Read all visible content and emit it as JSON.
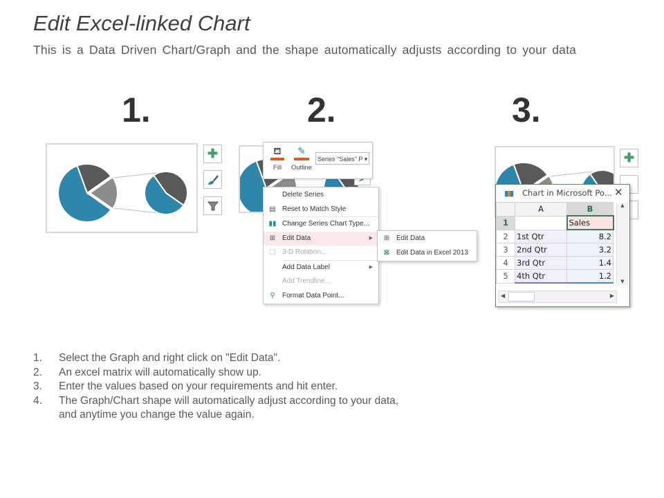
{
  "header": {
    "title": "Edit Excel-linked Chart",
    "subtitle": "This is a Data Driven Chart/Graph and the shape automatically adjusts according to your data"
  },
  "step_numbers": [
    "1.",
    "2.",
    "3."
  ],
  "colors": {
    "blue": "#2e86ab",
    "dark_gray": "#595959",
    "light_gray": "#8c8c8c",
    "accent_green": "#4a9e6b",
    "menu_highlight": "#fbe9e7",
    "fill_orange": "#d3601f"
  },
  "panel1": {
    "icons": [
      "plus-icon",
      "brush-icon",
      "filter-icon"
    ]
  },
  "panel2": {
    "mini_toolbar": {
      "fill_label": "Fill",
      "outline_label": "Outline",
      "series_select": "Series \"Sales\" P"
    },
    "context_menu": [
      {
        "label": "Delete Series",
        "icon": "",
        "disabled": false
      },
      {
        "label": "Reset to Match Style",
        "icon": "reset-style-icon",
        "disabled": false
      },
      {
        "label": "Change Series Chart Type...",
        "icon": "chart-type-icon",
        "disabled": false
      },
      {
        "label": "Edit Data",
        "icon": "edit-data-icon",
        "disabled": false,
        "submenu": true,
        "highlighted": true
      },
      {
        "label": "3-D Rotation...",
        "icon": "rotation-icon",
        "disabled": true
      },
      {
        "label": "Add Data Label",
        "icon": "",
        "disabled": false,
        "submenu": true
      },
      {
        "label": "Add Trendline...",
        "icon": "",
        "disabled": true
      },
      {
        "label": "Format Data Point...",
        "icon": "format-icon",
        "disabled": false
      }
    ],
    "submenu": [
      {
        "label": "Edit Data",
        "icon": "edit-data-icon"
      },
      {
        "label": "Edit Data in Excel 2013",
        "icon": "excel-icon"
      }
    ]
  },
  "panel3": {
    "window_title": "Chart in Microsoft Po...",
    "columns": [
      "A",
      "B"
    ],
    "rows": [
      {
        "num": "1",
        "a": "",
        "b": "Sales"
      },
      {
        "num": "2",
        "a": "1st Qtr",
        "b": "8.2"
      },
      {
        "num": "3",
        "a": "2nd Qtr",
        "b": "3.2"
      },
      {
        "num": "4",
        "a": "3rd Qtr",
        "b": "1.4"
      },
      {
        "num": "5",
        "a": "4th Qtr",
        "b": "1.2"
      }
    ]
  },
  "steps": [
    {
      "num": "1.",
      "text": "Select the Graph and right click on \"Edit Data\"."
    },
    {
      "num": "2.",
      "text": "An excel matrix will automatically show up."
    },
    {
      "num": "3.",
      "text": "Enter the values based on your requirements and hit enter."
    },
    {
      "num": "4.",
      "text": "The Graph/Chart shape will automatically adjust according to your data,"
    },
    {
      "num": "",
      "text": "and anytime you change the value again."
    }
  ]
}
